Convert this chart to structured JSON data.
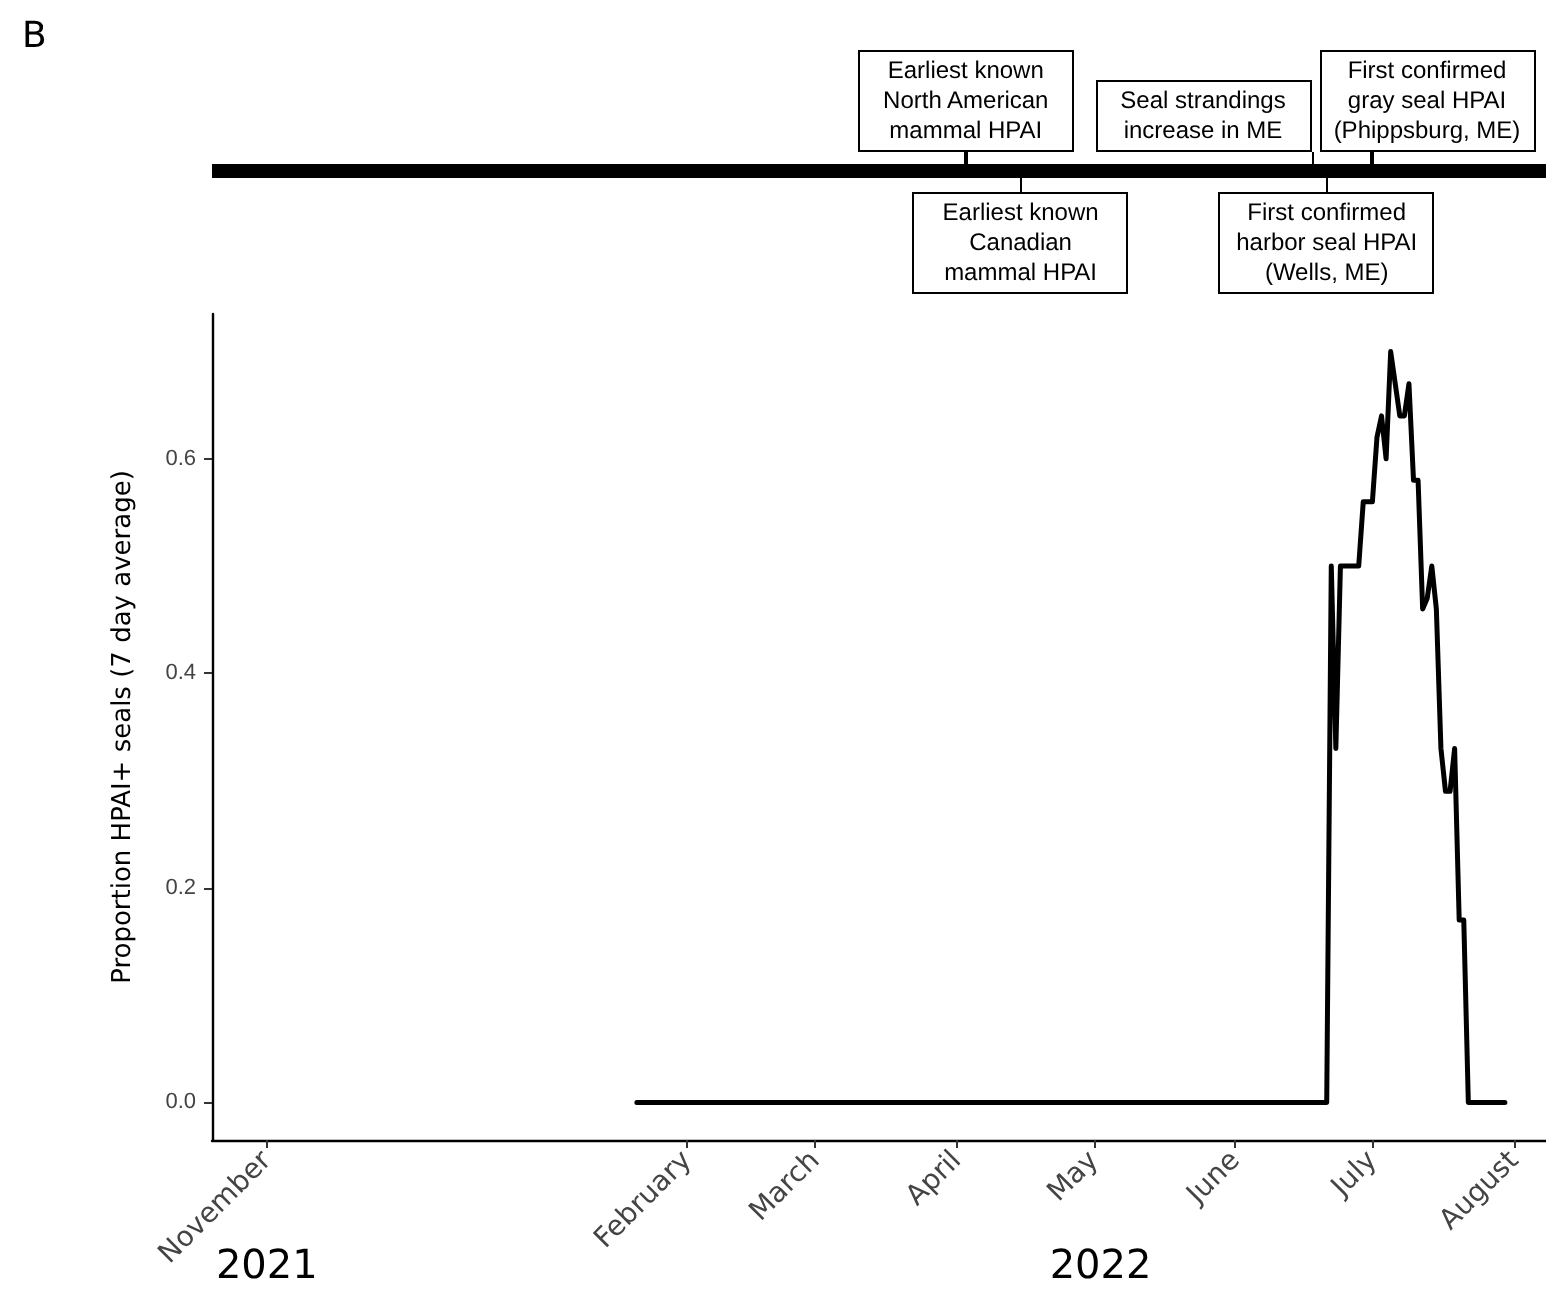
{
  "chart_data": {
    "type": "line",
    "title": "B",
    "ylabel": "Proportion HPAI+ seals (7 day average)",
    "color": "#000000",
    "line_style": "solid",
    "grid": false,
    "x": [
      "2022-01-21",
      "2022-06-21",
      "2022-06-22",
      "2022-06-23",
      "2022-06-24",
      "2022-06-28",
      "2022-06-29",
      "2022-07-01",
      "2022-07-02",
      "2022-07-03",
      "2022-07-04",
      "2022-07-05",
      "2022-07-07",
      "2022-07-08",
      "2022-07-09",
      "2022-07-10",
      "2022-07-11",
      "2022-07-12",
      "2022-07-13",
      "2022-07-14",
      "2022-07-15",
      "2022-07-16",
      "2022-07-17",
      "2022-07-18",
      "2022-07-19",
      "2022-07-20",
      "2022-07-21",
      "2022-07-22",
      "2022-07-30"
    ],
    "values": [
      0,
      0,
      0.5,
      0.33,
      0.5,
      0.5,
      0.56,
      0.56,
      0.62,
      0.64,
      0.6,
      0.7,
      0.64,
      0.64,
      0.67,
      0.58,
      0.58,
      0.46,
      0.47,
      0.5,
      0.46,
      0.33,
      0.29,
      0.29,
      0.33,
      0.17,
      0.17,
      0,
      0
    ],
    "xlim": [
      "2021-10-20",
      "2022-08-08"
    ],
    "xticks": [
      {
        "value": "2021-11-01",
        "label": "November"
      },
      {
        "value": "2022-02-01",
        "label": "February"
      },
      {
        "value": "2022-03-01",
        "label": "March"
      },
      {
        "value": "2022-04-01",
        "label": "April"
      },
      {
        "value": "2022-05-01",
        "label": "May"
      },
      {
        "value": "2022-06-01",
        "label": "June"
      },
      {
        "value": "2022-07-01",
        "label": "July"
      },
      {
        "value": "2022-08-01",
        "label": "August"
      }
    ],
    "ylim": [
      -0.035,
      0.735
    ],
    "yticks": [
      {
        "value": 0,
        "label": "0.0"
      },
      0.2,
      0.4,
      0.6
    ],
    "ref_lines": [
      {
        "axis": "x",
        "value": "2022-04-03",
        "label": "Earliest known North American mammal HPAI"
      },
      {
        "axis": "x",
        "value": "2022-04-15",
        "label": "Earliest known Canadian mammal HPAI"
      },
      {
        "axis": "x",
        "value": "2022-06-18",
        "label": "Seal strandings increase in ME"
      },
      {
        "axis": "x",
        "value": "2022-06-21",
        "label": "First confirmed harbor seal HPAI (Wells, ME)"
      },
      {
        "axis": "x",
        "value": "2022-07-01",
        "label": "First confirmed gray seal HPAI (Phippsburg, ME)"
      }
    ],
    "annotations": [
      "2021",
      "2022"
    ]
  }
}
